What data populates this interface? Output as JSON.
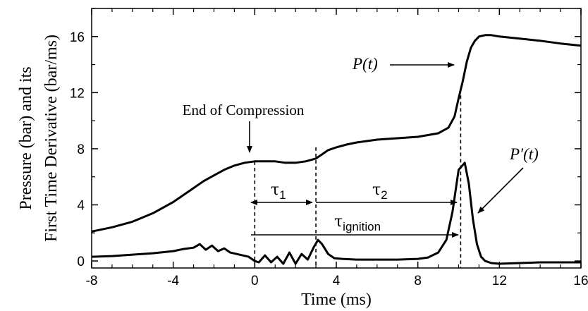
{
  "chart_data": {
    "type": "line",
    "title": "",
    "xlabel": "Time (ms)",
    "ylabel_line1": "Pressure (bar) and its",
    "ylabel_line2": "First Time Derivative (bar/ms)",
    "xlim": [
      -8,
      16
    ],
    "ylim": [
      -0.5,
      18
    ],
    "xticks": [
      -8,
      -4,
      0,
      4,
      8,
      12,
      16
    ],
    "yticks": [
      0,
      4,
      8,
      12,
      16
    ],
    "grid": false,
    "series": [
      {
        "name": "P(t)",
        "color": "#000000",
        "x": [
          -8,
          -7,
          -6,
          -5,
          -4,
          -3.5,
          -3,
          -2.5,
          -2,
          -1.5,
          -1,
          -0.5,
          0,
          0.5,
          1,
          1.5,
          2,
          2.5,
          3,
          3.3,
          3.6,
          4,
          4.5,
          5,
          5.5,
          6,
          7,
          8,
          9,
          9.5,
          9.8,
          10,
          10.2,
          10.4,
          10.6,
          10.8,
          11.0,
          11.3,
          11.6,
          12,
          13,
          14,
          15,
          16
        ],
        "y": [
          2.1,
          2.4,
          2.8,
          3.4,
          4.2,
          4.7,
          5.2,
          5.7,
          6.1,
          6.5,
          6.8,
          7.0,
          7.1,
          7.1,
          7.1,
          7.0,
          7.0,
          7.1,
          7.3,
          7.6,
          7.9,
          8.1,
          8.3,
          8.45,
          8.55,
          8.65,
          8.75,
          8.85,
          9.1,
          9.5,
          10.3,
          11.6,
          12.8,
          14.2,
          15.2,
          15.7,
          16.0,
          16.1,
          16.1,
          16.0,
          15.85,
          15.7,
          15.5,
          15.35
        ]
      },
      {
        "name": "P'(t)",
        "color": "#000000",
        "x": [
          -8,
          -7,
          -6,
          -5,
          -4,
          -3.5,
          -3,
          -2.7,
          -2.4,
          -2.1,
          -1.8,
          -1.5,
          -1.2,
          -0.9,
          -0.6,
          -0.3,
          0,
          0.2,
          0.5,
          0.8,
          1.1,
          1.4,
          1.7,
          2.0,
          2.3,
          2.6,
          2.9,
          3.1,
          3.3,
          3.6,
          3.9,
          4.3,
          5,
          6,
          7,
          8,
          8.5,
          9,
          9.4,
          9.7,
          10.0,
          10.3,
          10.5,
          10.7,
          10.9,
          11.1,
          11.3,
          11.6,
          12,
          13,
          14,
          15,
          16
        ],
        "y": [
          0.3,
          0.35,
          0.45,
          0.55,
          0.7,
          0.85,
          0.95,
          1.2,
          0.8,
          1.1,
          0.7,
          0.9,
          0.6,
          0.5,
          0.4,
          0.3,
          0.0,
          -0.1,
          0.4,
          -0.1,
          0.3,
          -0.2,
          0.6,
          -0.2,
          0.5,
          0.1,
          1.0,
          1.5,
          1.2,
          0.5,
          0.2,
          0.15,
          0.1,
          0.1,
          0.1,
          0.15,
          0.25,
          0.6,
          1.5,
          3.5,
          6.5,
          7.0,
          5.5,
          3.0,
          1.2,
          0.3,
          0.0,
          -0.15,
          -0.2,
          -0.15,
          -0.1,
          -0.1,
          -0.1
        ]
      }
    ],
    "annotations": {
      "end_of_compression": "End of Compression",
      "p_label": "P(t)",
      "pprime_label": "P′(t)",
      "tau1_base": "τ",
      "tau1_sub": "1",
      "tau2_base": "τ",
      "tau2_sub": "2",
      "tau_ign_base": "τ",
      "tau_ign_sub": "ignition"
    },
    "markers_x": [
      0,
      3,
      10.1
    ]
  }
}
